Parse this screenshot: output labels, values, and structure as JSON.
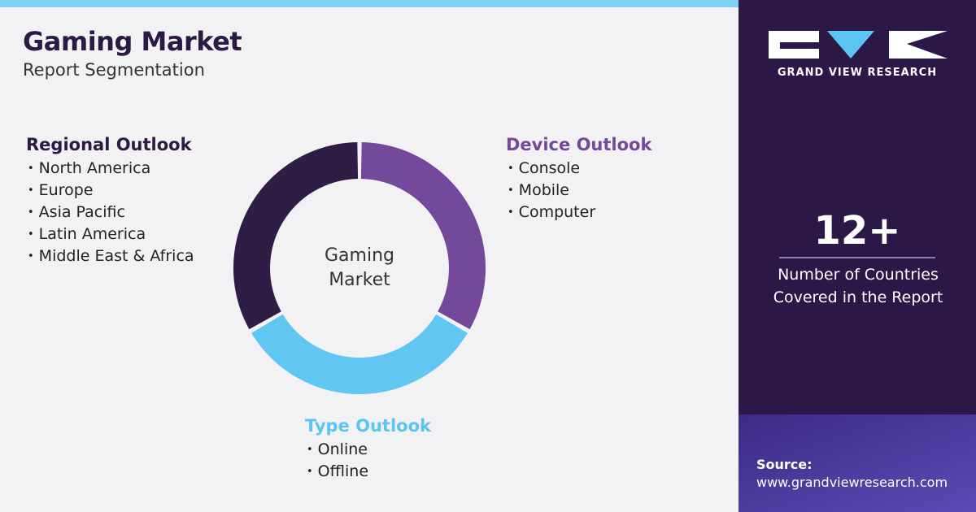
{
  "header": {
    "title": "Gaming Market",
    "subtitle": "Report Segmentation"
  },
  "center_label": "Gaming Market",
  "segments": [
    {
      "title": "Regional Outlook",
      "items": [
        "North America",
        "Europe",
        "Asia Pacific",
        "Latin America",
        "Middle East & Africa"
      ]
    },
    {
      "title": "Device Outlook",
      "items": [
        "Console",
        "Mobile",
        "Computer"
      ]
    },
    {
      "title": "Type Outlook",
      "items": [
        "Online",
        "Offline"
      ]
    }
  ],
  "sidebar": {
    "brand": "GRAND VIEW RESEARCH",
    "stat": "12+",
    "stat_label": "Number of Countries Covered in the Report",
    "source_label": "Source:",
    "source_url": "www.grandviewresearch.com"
  }
}
